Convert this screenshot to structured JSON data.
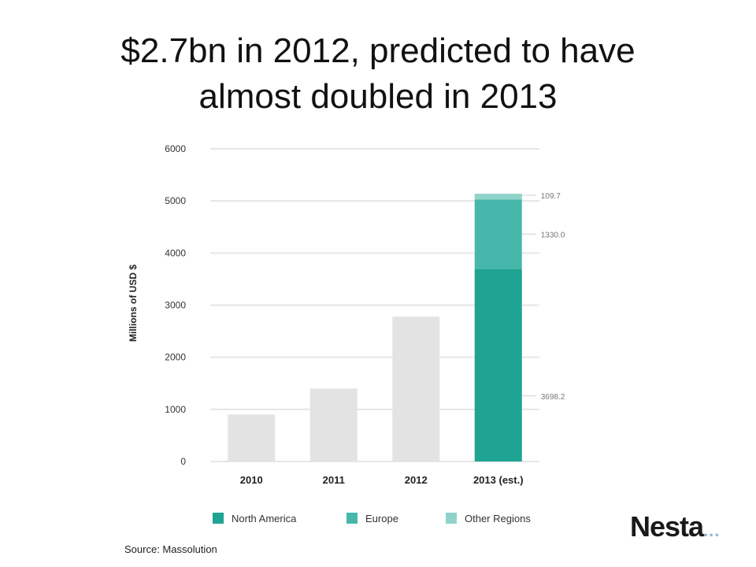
{
  "slide": {
    "title_line1": "$2.7bn in 2012, predicted to have",
    "title_line2": "almost doubled in 2013",
    "source": "Source: Massolution",
    "logo_text": "Nesta",
    "logo_dots": "..."
  },
  "colors": {
    "north_america": "#1fa393",
    "europe": "#45b8ab",
    "other_regions": "#8fd3ca",
    "past_years": "#e3e3e3",
    "grid": "#e6e6e6"
  },
  "chart_data": {
    "type": "bar",
    "categories": [
      "2010",
      "2011",
      "2012",
      "2013 (est.)"
    ],
    "ylabel": "Millions of USD $",
    "ylim": [
      0,
      6000
    ],
    "yticks": [
      0,
      1000,
      2000,
      3000,
      4000,
      5000,
      6000
    ],
    "grid": true,
    "legend_position": "bottom",
    "totals": [
      900,
      1400,
      2780,
      null
    ],
    "stacked_2013": [
      {
        "name": "North America",
        "value": 3698.2,
        "label": "3698.2"
      },
      {
        "name": "Europe",
        "value": 1330.0,
        "label": "1330.0"
      },
      {
        "name": "Other Regions",
        "value": 109.7,
        "label": "109.7"
      }
    ]
  }
}
